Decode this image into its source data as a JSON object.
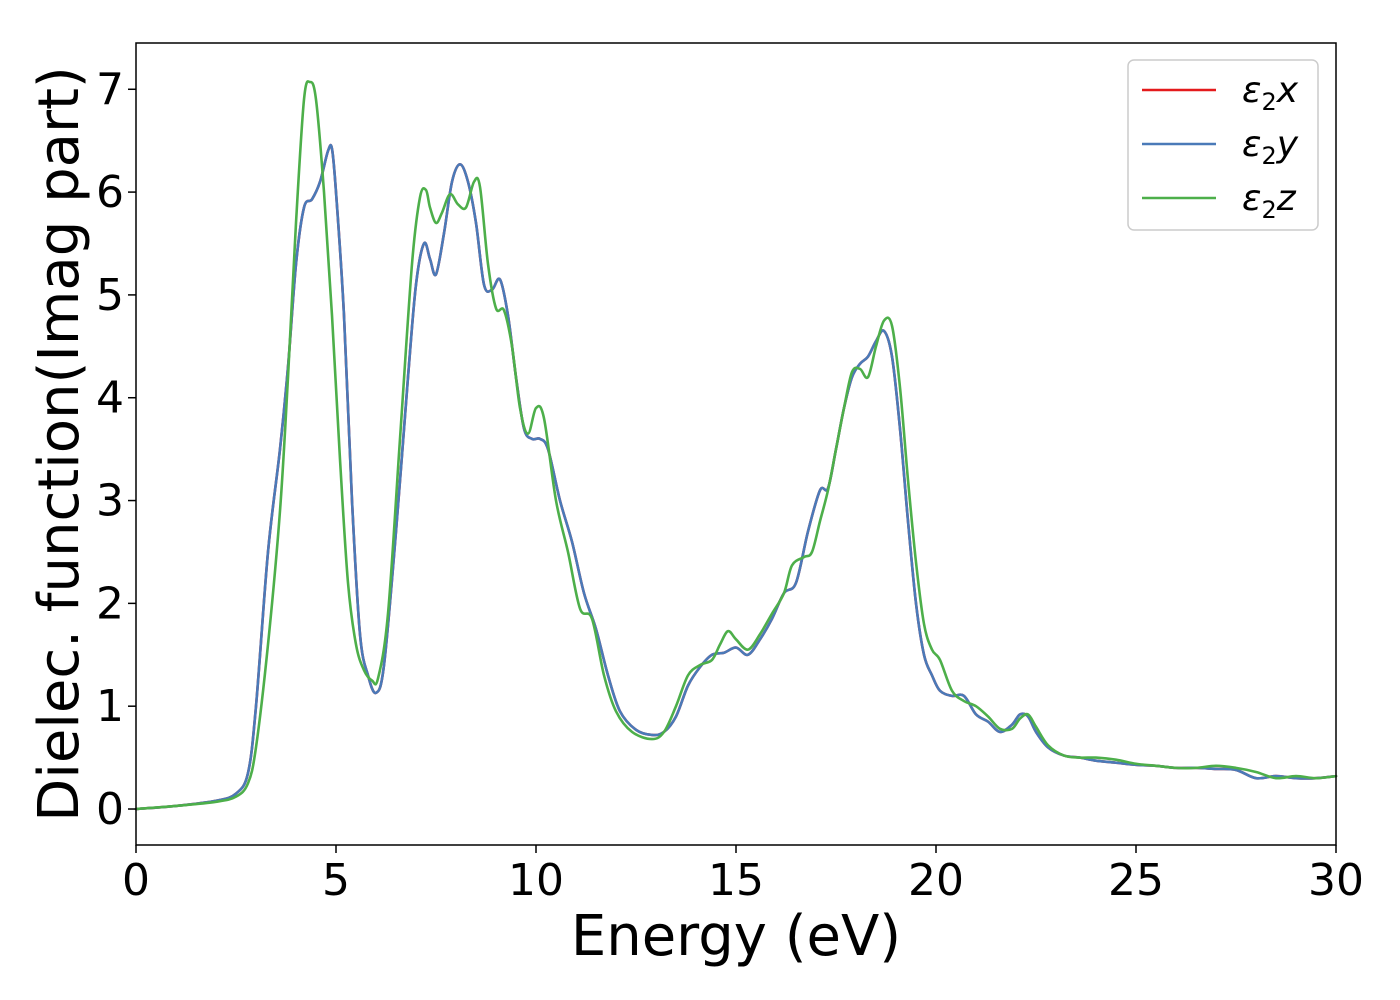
{
  "chart_data": {
    "type": "line",
    "title": "",
    "xlabel": "Energy (eV)",
    "ylabel": "Dielec. function(Imag part)",
    "xlim": [
      0,
      30
    ],
    "ylim": [
      -0.35,
      7.45
    ],
    "xticks": [
      0,
      5,
      10,
      15,
      20,
      25,
      30
    ],
    "yticks": [
      0,
      1,
      2,
      3,
      4,
      5,
      6,
      7
    ],
    "grid": false,
    "legend_position": "upper-right",
    "series": [
      {
        "name": "ε₂x",
        "legend_main": "ε",
        "legend_sub": "2",
        "legend_tail": "x",
        "color": "#e41a1c",
        "x": [
          0,
          1,
          2,
          2.5,
          2.8,
          3.0,
          3.3,
          3.6,
          3.8,
          4.0,
          4.2,
          4.4,
          4.6,
          4.8,
          4.9,
          5.0,
          5.2,
          5.4,
          5.6,
          5.8,
          6.0,
          6.2,
          6.5,
          6.8,
          7.0,
          7.2,
          7.35,
          7.5,
          7.7,
          7.9,
          8.1,
          8.3,
          8.5,
          8.7,
          8.9,
          9.1,
          9.3,
          9.5,
          9.7,
          9.9,
          10.1,
          10.3,
          10.6,
          10.9,
          11.2,
          11.5,
          11.8,
          12.1,
          12.5,
          12.9,
          13.2,
          13.5,
          13.8,
          14.1,
          14.4,
          14.7,
          15.0,
          15.3,
          15.6,
          15.9,
          16.2,
          16.5,
          16.8,
          17.1,
          17.3,
          17.5,
          17.7,
          17.9,
          18.1,
          18.3,
          18.5,
          18.7,
          18.9,
          19.1,
          19.3,
          19.5,
          19.7,
          19.9,
          20.1,
          20.4,
          20.7,
          21.0,
          21.3,
          21.6,
          21.9,
          22.1,
          22.3,
          22.5,
          22.8,
          23.2,
          23.6,
          24.0,
          24.5,
          25.0,
          25.5,
          26.0,
          26.5,
          27.0,
          27.5,
          28.0,
          28.5,
          29.0,
          29.5,
          30.0
        ],
        "values": [
          0.0,
          0.03,
          0.08,
          0.15,
          0.35,
          1.0,
          2.5,
          3.5,
          4.3,
          5.3,
          5.85,
          5.93,
          6.1,
          6.4,
          6.42,
          6.0,
          4.8,
          3.0,
          1.7,
          1.3,
          1.13,
          1.4,
          2.7,
          4.2,
          5.1,
          5.5,
          5.35,
          5.2,
          5.6,
          6.1,
          6.27,
          6.1,
          5.7,
          5.1,
          5.05,
          5.15,
          4.8,
          4.2,
          3.7,
          3.6,
          3.6,
          3.5,
          3.0,
          2.6,
          2.1,
          1.75,
          1.3,
          0.95,
          0.77,
          0.72,
          0.75,
          0.9,
          1.2,
          1.38,
          1.5,
          1.52,
          1.57,
          1.5,
          1.65,
          1.85,
          2.1,
          2.2,
          2.7,
          3.1,
          3.12,
          3.5,
          3.9,
          4.2,
          4.33,
          4.4,
          4.55,
          4.65,
          4.4,
          3.7,
          2.8,
          2.0,
          1.5,
          1.3,
          1.15,
          1.1,
          1.1,
          0.92,
          0.85,
          0.75,
          0.82,
          0.92,
          0.9,
          0.75,
          0.6,
          0.52,
          0.5,
          0.47,
          0.45,
          0.43,
          0.42,
          0.4,
          0.4,
          0.39,
          0.38,
          0.3,
          0.32,
          0.3,
          0.3,
          0.32
        ]
      },
      {
        "name": "ε₂y",
        "legend_main": "ε",
        "legend_sub": "2",
        "legend_tail": "y",
        "color": "#4a7ab8",
        "x": [
          0,
          1,
          2,
          2.5,
          2.8,
          3.0,
          3.3,
          3.6,
          3.8,
          4.0,
          4.2,
          4.4,
          4.6,
          4.8,
          4.9,
          5.0,
          5.2,
          5.4,
          5.6,
          5.8,
          6.0,
          6.2,
          6.5,
          6.8,
          7.0,
          7.2,
          7.35,
          7.5,
          7.7,
          7.9,
          8.1,
          8.3,
          8.5,
          8.7,
          8.9,
          9.1,
          9.3,
          9.5,
          9.7,
          9.9,
          10.1,
          10.3,
          10.6,
          10.9,
          11.2,
          11.5,
          11.8,
          12.1,
          12.5,
          12.9,
          13.2,
          13.5,
          13.8,
          14.1,
          14.4,
          14.7,
          15.0,
          15.3,
          15.6,
          15.9,
          16.2,
          16.5,
          16.8,
          17.1,
          17.3,
          17.5,
          17.7,
          17.9,
          18.1,
          18.3,
          18.5,
          18.7,
          18.9,
          19.1,
          19.3,
          19.5,
          19.7,
          19.9,
          20.1,
          20.4,
          20.7,
          21.0,
          21.3,
          21.6,
          21.9,
          22.1,
          22.3,
          22.5,
          22.8,
          23.2,
          23.6,
          24.0,
          24.5,
          25.0,
          25.5,
          26.0,
          26.5,
          27.0,
          27.5,
          28.0,
          28.5,
          29.0,
          29.5,
          30.0
        ],
        "values": [
          0.0,
          0.03,
          0.08,
          0.15,
          0.35,
          1.0,
          2.5,
          3.5,
          4.3,
          5.3,
          5.85,
          5.93,
          6.1,
          6.4,
          6.42,
          6.0,
          4.8,
          3.0,
          1.7,
          1.3,
          1.13,
          1.4,
          2.7,
          4.2,
          5.1,
          5.5,
          5.35,
          5.2,
          5.6,
          6.1,
          6.27,
          6.1,
          5.7,
          5.1,
          5.05,
          5.15,
          4.8,
          4.2,
          3.7,
          3.6,
          3.6,
          3.5,
          3.0,
          2.6,
          2.1,
          1.75,
          1.3,
          0.95,
          0.77,
          0.72,
          0.75,
          0.9,
          1.2,
          1.38,
          1.5,
          1.52,
          1.57,
          1.5,
          1.65,
          1.85,
          2.1,
          2.2,
          2.7,
          3.1,
          3.12,
          3.5,
          3.9,
          4.2,
          4.33,
          4.4,
          4.55,
          4.65,
          4.4,
          3.7,
          2.8,
          2.0,
          1.5,
          1.3,
          1.15,
          1.1,
          1.1,
          0.92,
          0.85,
          0.75,
          0.82,
          0.92,
          0.9,
          0.75,
          0.6,
          0.52,
          0.5,
          0.47,
          0.45,
          0.43,
          0.42,
          0.4,
          0.4,
          0.39,
          0.38,
          0.3,
          0.32,
          0.3,
          0.3,
          0.32
        ]
      },
      {
        "name": "ε₂z",
        "legend_main": "ε",
        "legend_sub": "2",
        "legend_tail": "z",
        "color": "#4daf4a",
        "x": [
          0,
          1,
          2,
          2.5,
          2.8,
          3.0,
          3.3,
          3.6,
          3.8,
          4.0,
          4.2,
          4.35,
          4.5,
          4.7,
          4.9,
          5.1,
          5.3,
          5.5,
          5.7,
          5.9,
          6.05,
          6.3,
          6.6,
          6.9,
          7.1,
          7.25,
          7.35,
          7.5,
          7.65,
          7.85,
          8.05,
          8.25,
          8.45,
          8.6,
          8.8,
          9.0,
          9.2,
          9.4,
          9.6,
          9.8,
          10.0,
          10.2,
          10.5,
          10.8,
          11.1,
          11.4,
          11.7,
          12.0,
          12.4,
          12.9,
          13.2,
          13.5,
          13.8,
          14.1,
          14.4,
          14.6,
          14.8,
          15.0,
          15.3,
          15.6,
          15.9,
          16.2,
          16.4,
          16.7,
          16.9,
          17.1,
          17.3,
          17.5,
          17.7,
          17.9,
          18.1,
          18.3,
          18.5,
          18.7,
          18.9,
          19.1,
          19.3,
          19.5,
          19.7,
          19.9,
          20.1,
          20.4,
          20.7,
          21.0,
          21.3,
          21.6,
          21.9,
          22.1,
          22.3,
          22.5,
          22.8,
          23.2,
          23.6,
          24.0,
          24.5,
          25.0,
          25.5,
          26.0,
          26.5,
          27.0,
          27.5,
          28.0,
          28.5,
          29.0,
          29.5,
          30.0
        ],
        "values": [
          0.0,
          0.03,
          0.07,
          0.12,
          0.25,
          0.6,
          1.6,
          2.9,
          4.2,
          5.7,
          6.9,
          7.07,
          6.9,
          6.0,
          4.8,
          3.4,
          2.2,
          1.6,
          1.35,
          1.25,
          1.27,
          1.9,
          3.6,
          5.3,
          5.95,
          6.02,
          5.85,
          5.7,
          5.8,
          5.98,
          5.88,
          5.85,
          6.1,
          6.05,
          5.3,
          4.87,
          4.85,
          4.5,
          3.9,
          3.65,
          3.9,
          3.8,
          3.0,
          2.5,
          1.95,
          1.85,
          1.3,
          0.95,
          0.75,
          0.68,
          0.75,
          1.0,
          1.3,
          1.4,
          1.45,
          1.6,
          1.73,
          1.65,
          1.55,
          1.7,
          1.9,
          2.1,
          2.37,
          2.45,
          2.5,
          2.8,
          3.1,
          3.5,
          3.9,
          4.25,
          4.28,
          4.2,
          4.5,
          4.75,
          4.7,
          4.1,
          3.2,
          2.4,
          1.8,
          1.55,
          1.45,
          1.15,
          1.05,
          1.0,
          0.9,
          0.78,
          0.78,
          0.88,
          0.92,
          0.8,
          0.62,
          0.52,
          0.5,
          0.5,
          0.48,
          0.44,
          0.42,
          0.4,
          0.4,
          0.42,
          0.4,
          0.36,
          0.3,
          0.32,
          0.3,
          0.32
        ]
      }
    ]
  }
}
